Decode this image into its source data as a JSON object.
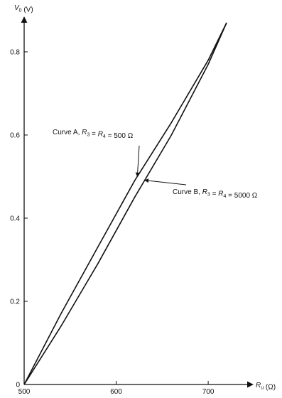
{
  "chart_data": {
    "type": "line",
    "xlabel": {
      "main": "R",
      "sub": "u",
      "unit": " (Ω)"
    },
    "ylabel": {
      "main": "V",
      "sub": "0",
      "unit": " (V)"
    },
    "xlim": [
      500,
      720
    ],
    "ylim": [
      0,
      0.87
    ],
    "x_ticks": [
      {
        "value": 500,
        "label": "500"
      },
      {
        "value": 600,
        "label": "600"
      },
      {
        "value": 700,
        "label": "700"
      }
    ],
    "y_ticks": [
      {
        "value": 0,
        "label": "0"
      },
      {
        "value": 0.2,
        "label": "0.2"
      },
      {
        "value": 0.4,
        "label": "0.4"
      },
      {
        "value": 0.6,
        "label": "0.6"
      },
      {
        "value": 0.8,
        "label": "0.8"
      }
    ],
    "grid": false,
    "series": [
      {
        "name": "Curve A",
        "x": [
          500,
          540,
          580,
          620,
          660,
          700,
          720
        ],
        "y": [
          0,
          0.17,
          0.33,
          0.49,
          0.63,
          0.78,
          0.87
        ]
      },
      {
        "name": "Curve B",
        "x": [
          500,
          540,
          580,
          620,
          660,
          700,
          720
        ],
        "y": [
          0,
          0.14,
          0.29,
          0.45,
          0.6,
          0.77,
          0.87
        ]
      }
    ],
    "annotations": [
      {
        "series": "Curve A",
        "parts": [
          {
            "t": "Curve A, "
          },
          {
            "t": "R",
            "i": true
          },
          {
            "t": "3",
            "s": true
          },
          {
            "t": " = "
          },
          {
            "t": "R",
            "i": true
          },
          {
            "t": "4",
            "s": true
          },
          {
            "t": " = 500 Ω"
          }
        ]
      },
      {
        "series": "Curve B",
        "parts": [
          {
            "t": "Curve B, "
          },
          {
            "t": "R",
            "i": true
          },
          {
            "t": "3",
            "s": true
          },
          {
            "t": " = "
          },
          {
            "t": "R",
            "i": true
          },
          {
            "t": "4",
            "s": true
          },
          {
            "t": " = 5000 Ω"
          }
        ]
      }
    ]
  }
}
